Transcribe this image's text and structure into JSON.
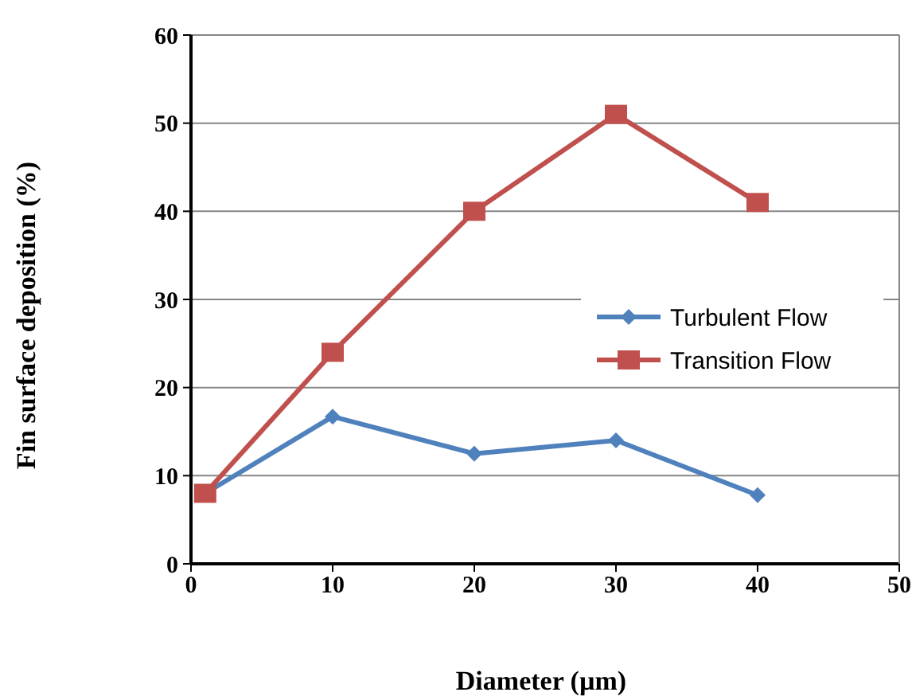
{
  "chart_data": {
    "type": "line",
    "xlabel": "Diameter (µm)",
    "ylabel": "Fin surface deposition (%)",
    "xlim": [
      0,
      50
    ],
    "xticks": [
      0,
      10,
      20,
      30,
      40,
      50
    ],
    "ylim": [
      0,
      60
    ],
    "yticks": [
      0,
      10,
      20,
      30,
      40,
      50,
      60
    ],
    "grid": "y",
    "legend": "right",
    "series": [
      {
        "name": "Turbulent Flow",
        "color": "#4f81bd",
        "marker": "diamond",
        "x": [
          1,
          10,
          20,
          30,
          40
        ],
        "values": [
          8,
          16.7,
          12.5,
          14,
          7.8
        ]
      },
      {
        "name": "Transition Flow",
        "color": "#c0504d",
        "marker": "square",
        "x": [
          1,
          10,
          20,
          30,
          40
        ],
        "values": [
          8,
          24,
          40,
          51,
          41
        ]
      }
    ]
  }
}
